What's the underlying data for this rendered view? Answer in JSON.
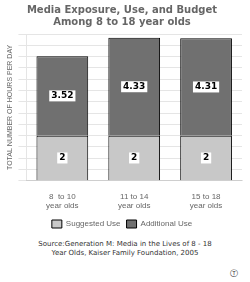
{
  "chart_data": {
    "type": "bar",
    "title": "Media Exposure, Use, and Budget\nAmong 8 to 18 year olds",
    "categories": [
      "8  to 10\nyear olds",
      "11 to 14\nyear olds",
      "15 to 18\nyear olds"
    ],
    "series": [
      {
        "name": "Suggested Use",
        "color": "#c8c8c8",
        "values": [
          2,
          2,
          2
        ]
      },
      {
        "name": "Additional Use",
        "color": "#707070",
        "values": [
          3.52,
          4.33,
          4.31
        ]
      }
    ],
    "stacked": true,
    "data_labels": true,
    "ylabel": "TOTAL NUMBER OF HOURS PER DAY",
    "ylim": [
      0,
      6.5
    ],
    "yticks": [
      0,
      0.5,
      1,
      1.5,
      2,
      2.5,
      3,
      3.5,
      4,
      4.5,
      5,
      5.5,
      6,
      6.5
    ],
    "tick_labels": "x",
    "grid": true,
    "legend": "bottom",
    "annotations": [
      "Source:Generation M: Media in the Lives of 8 - 18\nYear Olds, Kaiser Family Foundation, 2005",
      "Ⓣ"
    ]
  }
}
